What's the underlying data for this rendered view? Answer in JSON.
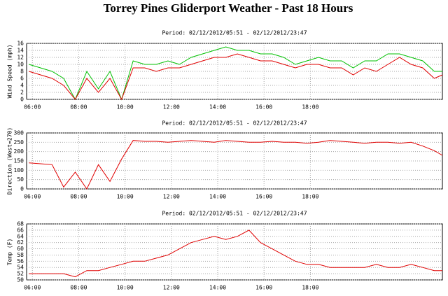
{
  "title": "Torrey Pines Gliderport Weather - Past 18 Hours",
  "chart_data": [
    {
      "type": "line",
      "title": "Period: 02/12/2012/05:51 - 02/12/2012/23:47",
      "ylabel": "Wind Speed (mph)",
      "x": [
        5.85,
        6.35,
        6.85,
        7.35,
        7.85,
        8.35,
        8.85,
        9.35,
        9.85,
        10.35,
        10.85,
        11.35,
        11.85,
        12.35,
        12.85,
        13.35,
        13.85,
        14.35,
        14.85,
        15.35,
        15.85,
        16.35,
        16.85,
        17.35,
        17.85,
        18.35,
        18.85,
        19.35,
        19.85,
        20.35,
        20.85,
        21.35,
        21.85,
        22.35,
        22.85,
        23.35,
        23.7
      ],
      "series": [
        {
          "color": "#00c000",
          "values": [
            10,
            9,
            8,
            6,
            0,
            8,
            3,
            8,
            0,
            11,
            10,
            10,
            11,
            10,
            12,
            13,
            14,
            15,
            14,
            14,
            13,
            13,
            12,
            10,
            11,
            12,
            11,
            11,
            9,
            11,
            11,
            13,
            13,
            12,
            11,
            8,
            8
          ]
        },
        {
          "color": "#e00000",
          "values": [
            8,
            7,
            6,
            4,
            0,
            6,
            2,
            6,
            0,
            9,
            9,
            8,
            9,
            9,
            10,
            11,
            12,
            12,
            13,
            12,
            11,
            11,
            10,
            9,
            10,
            10,
            9,
            9,
            7,
            9,
            8,
            10,
            12,
            10,
            9,
            6,
            7
          ]
        }
      ],
      "xlim": [
        5.75,
        23.7
      ],
      "ylim": [
        0,
        16
      ],
      "yticks": [
        0,
        2,
        4,
        6,
        8,
        10,
        12,
        14,
        16
      ],
      "xticks": [
        {
          "value": 6,
          "label": "06:00"
        },
        {
          "value": 8,
          "label": "08:00"
        },
        {
          "value": 10,
          "label": "10:00"
        },
        {
          "value": 12,
          "label": "12:00"
        },
        {
          "value": 14,
          "label": "14:00"
        },
        {
          "value": 16,
          "label": "16:00"
        },
        {
          "value": 18,
          "label": "18:00"
        }
      ],
      "grid": true
    },
    {
      "type": "line",
      "title": "Period: 02/12/2012/05:51 - 02/12/2012/23:47",
      "ylabel": "Direction (West=270)",
      "x": [
        5.85,
        6.35,
        6.85,
        7.35,
        7.85,
        8.35,
        8.85,
        9.35,
        9.85,
        10.35,
        10.85,
        11.35,
        11.85,
        12.35,
        12.85,
        13.35,
        13.85,
        14.35,
        14.85,
        15.35,
        15.85,
        16.35,
        16.85,
        17.35,
        17.85,
        18.35,
        18.85,
        19.35,
        19.85,
        20.35,
        20.85,
        21.35,
        21.85,
        22.35,
        22.85,
        23.35,
        23.7
      ],
      "series": [
        {
          "color": "#e00000",
          "values": [
            140,
            135,
            130,
            10,
            90,
            0,
            130,
            40,
            160,
            260,
            255,
            255,
            250,
            255,
            260,
            255,
            250,
            260,
            255,
            250,
            250,
            255,
            250,
            250,
            245,
            250,
            260,
            255,
            250,
            245,
            250,
            250,
            245,
            250,
            230,
            205,
            180
          ]
        }
      ],
      "xlim": [
        5.75,
        23.7
      ],
      "ylim": [
        0,
        300
      ],
      "yticks": [
        0,
        50,
        100,
        150,
        200,
        250,
        300
      ],
      "xticks": [
        {
          "value": 6,
          "label": "06:00"
        },
        {
          "value": 8,
          "label": "08:00"
        },
        {
          "value": 10,
          "label": "10:00"
        },
        {
          "value": 12,
          "label": "12:00"
        },
        {
          "value": 14,
          "label": "14:00"
        },
        {
          "value": 16,
          "label": "16:00"
        },
        {
          "value": 18,
          "label": "18:00"
        }
      ],
      "grid": true
    },
    {
      "type": "line",
      "title": "Period: 02/12/2012/05:51 - 02/12/2012/23:47",
      "ylabel": "Temp (F)",
      "x": [
        5.85,
        6.35,
        6.85,
        7.35,
        7.85,
        8.35,
        8.85,
        9.35,
        9.85,
        10.35,
        10.85,
        11.35,
        11.85,
        12.35,
        12.85,
        13.35,
        13.85,
        14.35,
        14.85,
        15.35,
        15.85,
        16.35,
        16.85,
        17.35,
        17.85,
        18.35,
        18.85,
        19.35,
        19.85,
        20.35,
        20.85,
        21.35,
        21.85,
        22.35,
        22.85,
        23.35,
        23.7
      ],
      "series": [
        {
          "color": "#e00000",
          "values": [
            52,
            52,
            52,
            52,
            51,
            53,
            53,
            54,
            55,
            56,
            56,
            57,
            58,
            60,
            62,
            63,
            64,
            63,
            64,
            66,
            62,
            60,
            58,
            56,
            55,
            55,
            54,
            54,
            54,
            54,
            55,
            54,
            54,
            55,
            54,
            53,
            53
          ]
        }
      ],
      "xlim": [
        5.75,
        23.7
      ],
      "ylim": [
        50,
        68
      ],
      "yticks": [
        50,
        52,
        54,
        56,
        58,
        60,
        62,
        64,
        66,
        68
      ],
      "xticks": [
        {
          "value": 6,
          "label": "06:00"
        },
        {
          "value": 8,
          "label": "08:00"
        },
        {
          "value": 10,
          "label": "10:00"
        },
        {
          "value": 12,
          "label": "12:00"
        },
        {
          "value": 14,
          "label": "14:00"
        },
        {
          "value": 16,
          "label": "16:00"
        },
        {
          "value": 18,
          "label": "18:00"
        }
      ],
      "grid": true
    }
  ]
}
